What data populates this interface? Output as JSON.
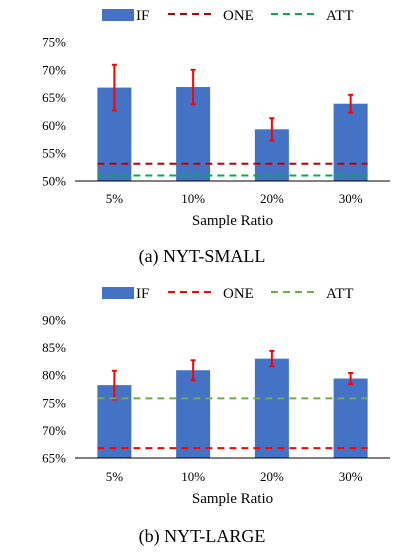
{
  "chart_data": [
    {
      "type": "bar",
      "title": "",
      "caption": "(a) NYT-SMALL",
      "xlabel": "Sample Ratio",
      "ylabel": "",
      "categories": [
        "5%",
        "10%",
        "20%",
        "30%"
      ],
      "yticks": [
        "50%",
        "55%",
        "60%",
        "65%",
        "70%",
        "75%"
      ],
      "ylim": [
        50,
        75
      ],
      "legend_position": "top",
      "series": [
        {
          "name": "IF",
          "type": "bar",
          "values": [
            66.8,
            66.9,
            59.3,
            63.9
          ],
          "errors": [
            4.1,
            3.1,
            2.0,
            1.6
          ],
          "color": "#4472c4",
          "error_color": "#ff0000"
        },
        {
          "name": "ONE",
          "type": "line",
          "style": "dashed",
          "value": 53.1,
          "color": "#c00000"
        },
        {
          "name": "ATT",
          "type": "line",
          "style": "dashed",
          "value": 51.0,
          "color": "#00b050"
        }
      ]
    },
    {
      "type": "bar",
      "title": "",
      "caption": "(b) NYT-LARGE",
      "xlabel": "Sample Ratio",
      "ylabel": "",
      "categories": [
        "5%",
        "10%",
        "20%",
        "30%"
      ],
      "yticks": [
        "65%",
        "70%",
        "75%",
        "80%",
        "85%",
        "90%"
      ],
      "ylim": [
        65,
        90
      ],
      "legend_position": "top",
      "series": [
        {
          "name": "IF",
          "type": "bar",
          "values": [
            78.2,
            80.9,
            83.0,
            79.4
          ],
          "errors": [
            2.6,
            1.8,
            1.4,
            1.0
          ],
          "color": "#4472c4",
          "error_color": "#ff0000"
        },
        {
          "name": "ONE",
          "type": "line",
          "style": "dashed",
          "value": 66.8,
          "color": "#ff0000"
        },
        {
          "name": "ATT",
          "type": "line",
          "style": "dashed",
          "value": 75.8,
          "color": "#70ad47"
        }
      ]
    }
  ]
}
